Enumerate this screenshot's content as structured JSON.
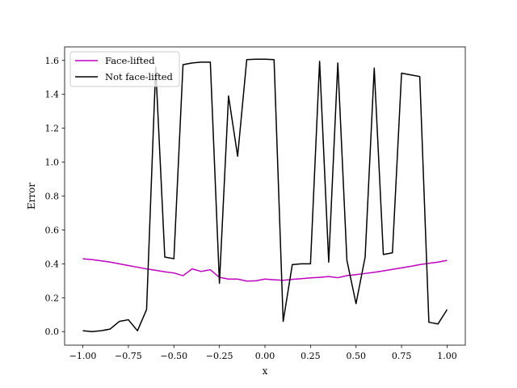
{
  "chart_data": {
    "type": "line",
    "title": "",
    "xlabel": "x",
    "ylabel": "Error",
    "xlim": [
      -1.1,
      1.1
    ],
    "ylim": [
      -0.08,
      1.68
    ],
    "xticks": [
      -1.0,
      -0.75,
      -0.5,
      -0.25,
      0.0,
      0.25,
      0.5,
      0.75,
      1.0
    ],
    "xtick_labels": [
      "−1.00",
      "−0.75",
      "−0.50",
      "−0.25",
      "0.00",
      "0.25",
      "0.50",
      "0.75",
      "1.00"
    ],
    "yticks": [
      0.0,
      0.2,
      0.4,
      0.6,
      0.8,
      1.0,
      1.2,
      1.4,
      1.6
    ],
    "ytick_labels": [
      "0.0",
      "0.2",
      "0.4",
      "0.6",
      "0.8",
      "1.0",
      "1.2",
      "1.4",
      "1.6"
    ],
    "grid": false,
    "legend_position": "top-left",
    "x": [
      -1.0,
      -0.95,
      -0.9,
      -0.85,
      -0.8,
      -0.75,
      -0.7,
      -0.65,
      -0.6,
      -0.55,
      -0.5,
      -0.45,
      -0.4,
      -0.35,
      -0.3,
      -0.25,
      -0.2,
      -0.15,
      -0.1,
      -0.05,
      0.0,
      0.05,
      0.1,
      0.15,
      0.2,
      0.25,
      0.3,
      0.35,
      0.4,
      0.45,
      0.5,
      0.55,
      0.6,
      0.65,
      0.7,
      0.75,
      0.8,
      0.85,
      0.9,
      0.95,
      1.0
    ],
    "series": [
      {
        "name": "Face-lifted",
        "color": "#bf00bf",
        "values": [
          0.43,
          0.425,
          0.418,
          0.41,
          0.4,
          0.39,
          0.38,
          0.37,
          0.362,
          0.353,
          0.346,
          0.33,
          0.37,
          0.355,
          0.365,
          0.32,
          0.31,
          0.31,
          0.298,
          0.3,
          0.31,
          0.306,
          0.303,
          0.308,
          0.312,
          0.317,
          0.32,
          0.325,
          0.318,
          0.33,
          0.336,
          0.343,
          0.35,
          0.358,
          0.367,
          0.376,
          0.385,
          0.395,
          0.403,
          0.41,
          0.42
        ]
      },
      {
        "name": "Not face-lifted",
        "color": "#000000",
        "values": [
          0.005,
          0.0,
          0.005,
          0.015,
          0.06,
          0.07,
          0.005,
          0.13,
          1.56,
          0.44,
          0.43,
          1.575,
          1.585,
          1.59,
          1.59,
          0.285,
          1.39,
          1.035,
          1.605,
          1.607,
          1.607,
          1.605,
          0.06,
          0.395,
          0.4,
          0.4,
          1.595,
          0.41,
          1.585,
          0.42,
          0.165,
          0.44,
          1.555,
          0.455,
          0.465,
          1.525,
          1.515,
          1.505,
          0.055,
          0.045,
          0.13
        ]
      }
    ]
  }
}
